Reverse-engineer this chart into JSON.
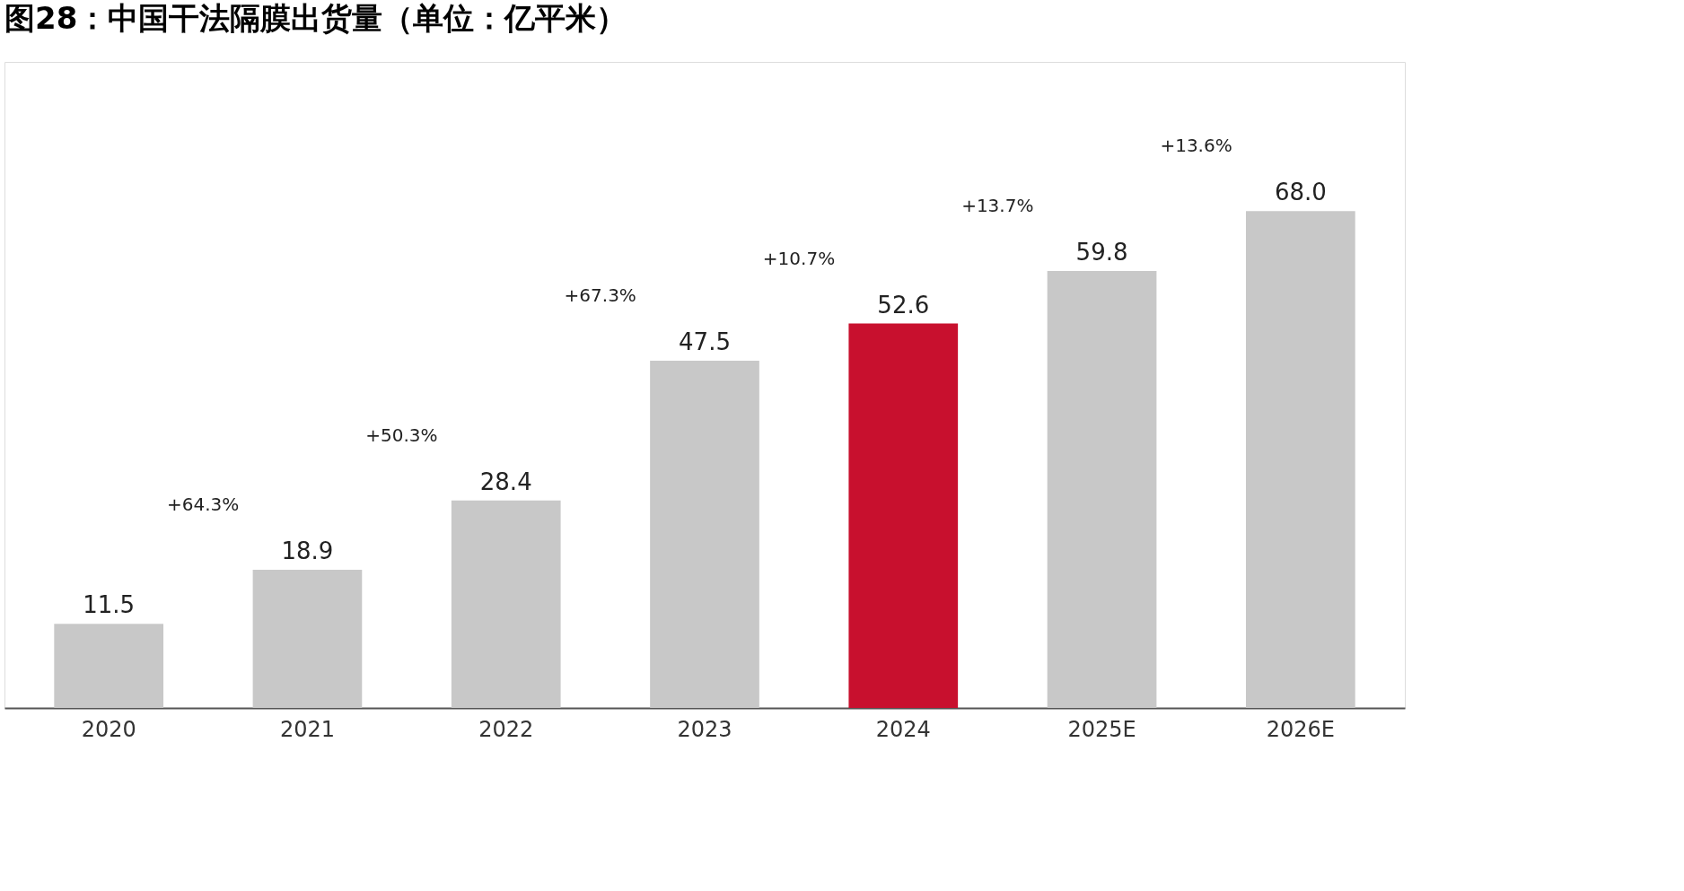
{
  "chart_data": {
    "type": "bar",
    "title": "图28：中国干法隔膜出货量（单位：亿平米）",
    "categories": [
      "2020",
      "2021",
      "2022",
      "2023",
      "2024",
      "2025E",
      "2026E"
    ],
    "values": [
      11.5,
      18.9,
      28.4,
      47.5,
      52.6,
      59.8,
      68.0
    ],
    "colors": [
      "#c8c8c8",
      "#c8c8c8",
      "#c8c8c8",
      "#c8c8c8",
      "#c8102e",
      "#c8c8c8",
      "#c8c8c8"
    ],
    "value_labels": [
      "11.5",
      "18.9",
      "28.4",
      "47.5",
      "52.6",
      "59.8",
      "68.0"
    ],
    "annotations": [
      "+64.3%",
      "+50.3%",
      "+67.3%",
      "+10.7%",
      "+13.7%",
      "+13.6%"
    ],
    "grid": false
  }
}
